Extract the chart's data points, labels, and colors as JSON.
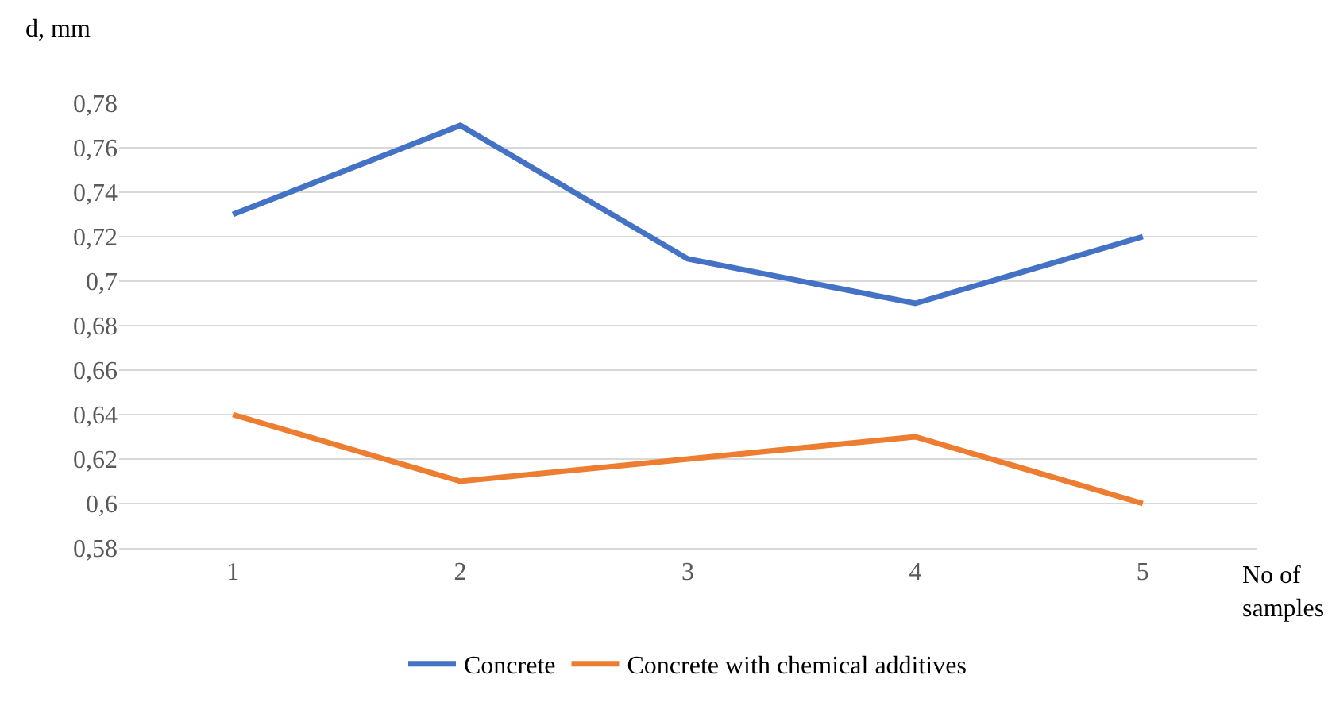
{
  "chart_data": {
    "type": "line",
    "ylabel": "d, mm",
    "xlabel": "No of samples",
    "categories": [
      "1",
      "2",
      "3",
      "4",
      "5"
    ],
    "series": [
      {
        "name": "Concrete",
        "color": "#4472c4",
        "values": [
          0.73,
          0.77,
          0.71,
          0.69,
          0.72
        ]
      },
      {
        "name": "Concrete with chemical additives",
        "color": "#ed7d31",
        "values": [
          0.64,
          0.61,
          0.62,
          0.63,
          0.6
        ]
      }
    ],
    "ylim": [
      0.58,
      0.78
    ],
    "yticks": [
      {
        "value": 0.58,
        "label": "0,58"
      },
      {
        "value": 0.6,
        "label": "0,6"
      },
      {
        "value": 0.62,
        "label": "0,62"
      },
      {
        "value": 0.64,
        "label": "0,64"
      },
      {
        "value": 0.66,
        "label": "0,66"
      },
      {
        "value": 0.68,
        "label": "0,68"
      },
      {
        "value": 0.7,
        "label": "0,7"
      },
      {
        "value": 0.72,
        "label": "0,72"
      },
      {
        "value": 0.74,
        "label": "0,74"
      },
      {
        "value": 0.76,
        "label": "0,76"
      },
      {
        "value": 0.78,
        "label": "0,78"
      }
    ],
    "grid": "y",
    "legend": "bottom",
    "marker": "none",
    "line_style": "solid"
  }
}
